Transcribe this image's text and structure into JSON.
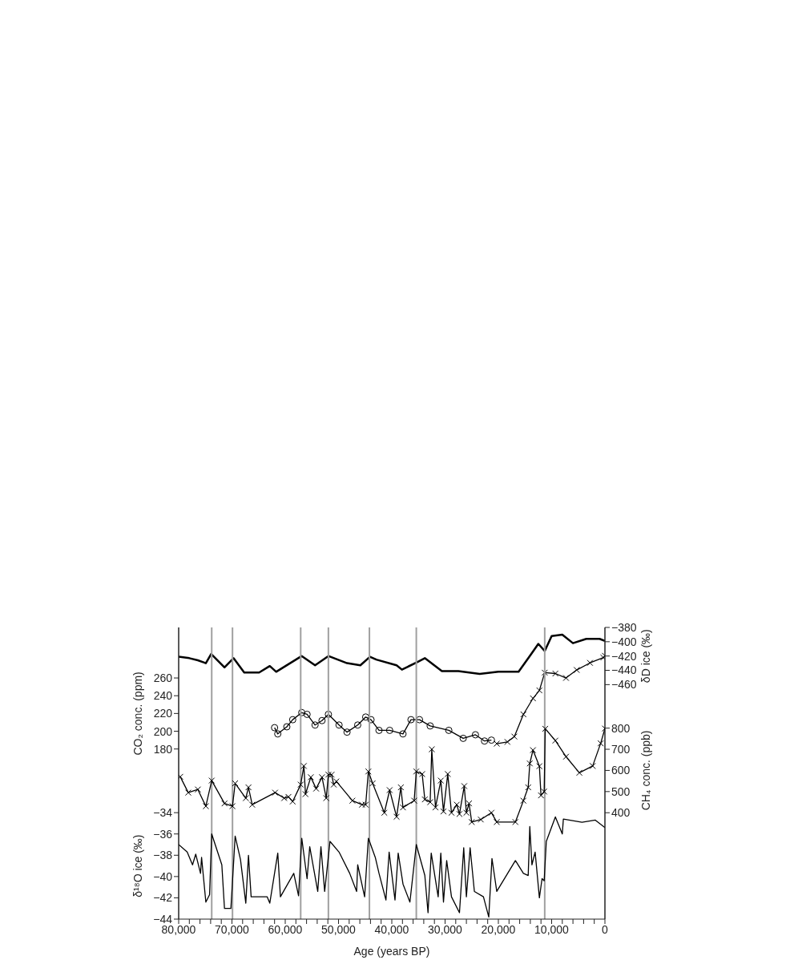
{
  "chart_data": [
    {
      "type": "line",
      "ylabel": "CO₂ conc. (ppm)",
      "y2label": "δD ice (‰)",
      "tick_labels": "y",
      "xlim": [
        80000,
        0
      ],
      "ylim": [
        -11.6,
        316.9
      ],
      "yticks": [
        180,
        200,
        220,
        240,
        260
      ],
      "y2lim": [
        -788,
        -380
      ],
      "y2ticks": [
        {
          "value": -380,
          "label": "−380"
        },
        {
          "value": -400,
          "label": "−400"
        },
        {
          "value": -420,
          "label": "−420"
        },
        {
          "value": -440,
          "label": "−440"
        },
        {
          "value": -460,
          "label": "−460"
        }
      ],
      "series": [
        {
          "axis": "y2",
          "color": "#000000",
          "marker": "none",
          "x": [
            80000,
            78000,
            76400,
            74900,
            73900,
            71400,
            69700,
            67700,
            64900,
            62900,
            61700,
            56900,
            54400,
            51900,
            48400,
            45900,
            44100,
            42900,
            39100,
            38100,
            35100,
            33800,
            30600,
            27500,
            23500,
            20000,
            16200,
            14000,
            12500,
            11300,
            10000,
            8000,
            6000,
            3500,
            1000,
            0
          ],
          "values": [
            -421,
            -423,
            -426,
            -430,
            -417,
            -436,
            -423,
            -443,
            -443,
            -434,
            -442,
            -420,
            -433,
            -420,
            -430,
            -433,
            -421,
            -425,
            -433,
            -439,
            -428,
            -423,
            -441,
            -441,
            -445,
            -442,
            -442,
            -419,
            -403,
            -413,
            -392,
            -390,
            -402,
            -396,
            -396,
            -399
          ]
        },
        {
          "color": "#000000",
          "marker": "circle",
          "x": [
            62000,
            61400,
            59700,
            58600,
            56900,
            55900,
            54400,
            53100,
            51900,
            49900,
            48400,
            46400,
            44900,
            43900,
            42400,
            40400,
            37900,
            36400,
            34800,
            32800,
            29300,
            26600,
            24300,
            22600,
            21300
          ],
          "values": [
            204,
            197,
            205,
            213,
            221,
            219,
            207,
            212,
            219,
            207,
            199,
            207,
            216,
            213,
            201,
            201,
            197,
            213,
            213,
            206,
            201,
            192,
            196,
            189,
            190
          ]
        },
        {
          "color": "#000000",
          "marker": "cross",
          "x": [
            20300,
            18300,
            17000,
            15300,
            13500,
            12300,
            11300,
            9300,
            7300,
            5300,
            2800,
            300,
            0
          ],
          "values": [
            186,
            188,
            194,
            219,
            237,
            246,
            266,
            265,
            260,
            269,
            277,
            283,
            285
          ]
        }
      ]
    },
    {
      "type": "line",
      "xlabel": "Age (years BP)",
      "ylabel": "δ¹⁸O ice (‰)",
      "y2label": "CH₄ conc. (ppb)",
      "xlim": [
        80000,
        0
      ],
      "xticks": [
        {
          "value": 80000,
          "label": "80,000"
        },
        {
          "value": 78000,
          "label": null
        },
        {
          "value": 76000,
          "label": null
        },
        {
          "value": 74000,
          "label": null
        },
        {
          "value": 72000,
          "label": null
        },
        {
          "value": 70000,
          "label": "70,000"
        },
        {
          "value": 68000,
          "label": null
        },
        {
          "value": 66000,
          "label": null
        },
        {
          "value": 64000,
          "label": null
        },
        {
          "value": 62000,
          "label": null
        },
        {
          "value": 60000,
          "label": "60,000"
        },
        {
          "value": 58000,
          "label": null
        },
        {
          "value": 56000,
          "label": null
        },
        {
          "value": 54000,
          "label": null
        },
        {
          "value": 52000,
          "label": null
        },
        {
          "value": 50000,
          "label": "50,000"
        },
        {
          "value": 48000,
          "label": null
        },
        {
          "value": 46000,
          "label": null
        },
        {
          "value": 44000,
          "label": null
        },
        {
          "value": 42000,
          "label": null
        },
        {
          "value": 40000,
          "label": "40,000"
        },
        {
          "value": 38000,
          "label": null
        },
        {
          "value": 36000,
          "label": null
        },
        {
          "value": 34000,
          "label": null
        },
        {
          "value": 32000,
          "label": null
        },
        {
          "value": 30000,
          "label": "30,000"
        },
        {
          "value": 28000,
          "label": null
        },
        {
          "value": 26000,
          "label": null
        },
        {
          "value": 24000,
          "label": null
        },
        {
          "value": 22000,
          "label": null
        },
        {
          "value": 20000,
          "label": "20,000"
        },
        {
          "value": 18000,
          "label": null
        },
        {
          "value": 16000,
          "label": null
        },
        {
          "value": 14000,
          "label": null
        },
        {
          "value": 12000,
          "label": null
        },
        {
          "value": 10000,
          "label": "10,000"
        },
        {
          "value": 8000,
          "label": null
        },
        {
          "value": 6000,
          "label": null
        },
        {
          "value": 4000,
          "label": null
        },
        {
          "value": 2000,
          "label": null
        },
        {
          "value": 0,
          "label": "0"
        }
      ],
      "ylim": [
        -44,
        -16.6
      ],
      "yticks": [
        {
          "value": -44,
          "label": "−44"
        },
        {
          "value": -42,
          "label": "−42"
        },
        {
          "value": -40,
          "label": "−40"
        },
        {
          "value": -38,
          "label": "−38"
        },
        {
          "value": -36,
          "label": "−36"
        },
        {
          "value": -34,
          "label": "−34"
        }
      ],
      "y2lim": [
        -103,
        1276
      ],
      "y2ticks": [
        400,
        500,
        600,
        700,
        800
      ],
      "ref_lines": [
        {
          "axis": "x",
          "value": 73800,
          "color": "#a0a0a0"
        },
        {
          "axis": "x",
          "value": 69900,
          "color": "#a0a0a0"
        },
        {
          "axis": "x",
          "value": 57100,
          "color": "#a0a0a0"
        },
        {
          "axis": "x",
          "value": 51900,
          "color": "#a0a0a0"
        },
        {
          "axis": "x",
          "value": 44200,
          "color": "#a0a0a0"
        },
        {
          "axis": "x",
          "value": 35400,
          "color": "#a0a0a0"
        },
        {
          "axis": "x",
          "value": 11300,
          "color": "#a0a0a0"
        }
      ],
      "series": [
        {
          "axis": "y2",
          "color": "#000000",
          "marker": "cross",
          "x": [
            79700,
            78200,
            76400,
            74900,
            73800,
            71400,
            69900,
            69400,
            67400,
            66900,
            66200,
            61900,
            60200,
            59400,
            58600,
            57100,
            56500,
            56200,
            55200,
            54200,
            53100,
            52300,
            51900,
            51300,
            50900,
            50400,
            47400,
            45600,
            44900,
            44400,
            43600,
            41400,
            40400,
            39100,
            38300,
            37900,
            35800,
            35400,
            34300,
            33800,
            32800,
            32500,
            31800,
            30800,
            30300,
            29500,
            28800,
            27800,
            27300,
            26400,
            26000,
            25500,
            25000,
            23300,
            21300,
            20300,
            16800,
            15300,
            14400,
            14100,
            13500,
            12300,
            12000,
            11400,
            11200,
            9300,
            7300,
            4800,
            2300,
            800,
            0
          ],
          "values": [
            570,
            495,
            510,
            431,
            552,
            444,
            431,
            539,
            469,
            520,
            438,
            495,
            469,
            475,
            453,
            533,
            621,
            488,
            568,
            514,
            568,
            469,
            580,
            580,
            533,
            548,
            457,
            438,
            438,
            595,
            539,
            400,
            507,
            381,
            520,
            425,
            457,
            595,
            583,
            463,
            450,
            700,
            425,
            552,
            406,
            583,
            400,
            438,
            394,
            526,
            400,
            444,
            356,
            368,
            400,
            356,
            356,
            457,
            520,
            633,
            696,
            620,
            482,
            500,
            797,
            741,
            665,
            589,
            621,
            728,
            798
          ]
        },
        {
          "color": "#000000",
          "marker": "none",
          "x": [
            80000,
            78400,
            77400,
            76800,
            75900,
            75700,
            74900,
            74200,
            73800,
            71900,
            71400,
            70200,
            69400,
            68400,
            67400,
            66900,
            66400,
            63400,
            62900,
            61400,
            60900,
            58400,
            57500,
            56900,
            55900,
            55400,
            53900,
            53300,
            52600,
            51600,
            49900,
            47900,
            46600,
            46400,
            45100,
            44400,
            43100,
            42400,
            41100,
            40500,
            39400,
            38800,
            37900,
            36600,
            35400,
            33800,
            33200,
            32600,
            31300,
            30800,
            30300,
            29700,
            28800,
            27300,
            26500,
            26000,
            25300,
            24500,
            22800,
            21800,
            21200,
            20300,
            16800,
            15300,
            14400,
            14100,
            13700,
            13100,
            12300,
            11800,
            11400,
            11000,
            9300,
            8000,
            7800,
            4300,
            1800,
            0
          ],
          "values": [
            -37.0,
            -37.7,
            -38.9,
            -37.9,
            -39.7,
            -38.2,
            -42.4,
            -41.7,
            -36.0,
            -38.9,
            -43.0,
            -43.0,
            -36.2,
            -38.4,
            -42.5,
            -38.0,
            -41.9,
            -41.9,
            -42.5,
            -37.8,
            -41.9,
            -39.7,
            -41.8,
            -36.4,
            -40.2,
            -37.2,
            -41.4,
            -37.2,
            -41.4,
            -36.7,
            -37.7,
            -39.7,
            -41.4,
            -38.9,
            -41.9,
            -36.4,
            -38.2,
            -39.7,
            -42.2,
            -37.7,
            -42.2,
            -37.8,
            -40.7,
            -42.4,
            -37.0,
            -39.9,
            -43.4,
            -37.8,
            -41.9,
            -37.8,
            -42.4,
            -38.5,
            -41.9,
            -43.4,
            -37.3,
            -41.9,
            -37.3,
            -41.4,
            -41.9,
            -43.8,
            -38.3,
            -41.4,
            -38.5,
            -39.7,
            -39.9,
            -35.3,
            -38.9,
            -37.7,
            -42.0,
            -40.2,
            -40.4,
            -36.7,
            -34.4,
            -36.0,
            -34.6,
            -34.9,
            -34.7,
            -35.4
          ]
        }
      ]
    }
  ]
}
